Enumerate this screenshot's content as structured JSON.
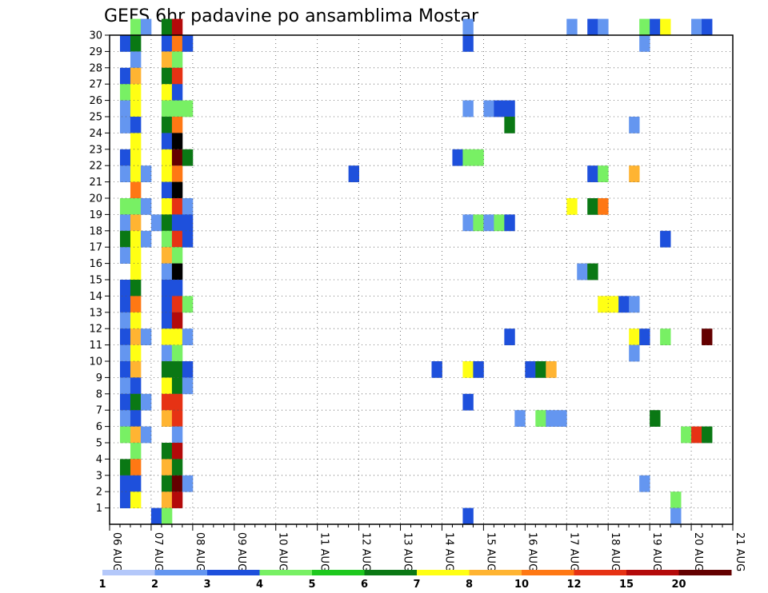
{
  "chart_data": {
    "type": "heatmap",
    "title": "GEFS 6hr padavine po ansamblima Mostar",
    "x_ticks": [
      "06 AUG",
      "07 AUG",
      "08 AUG",
      "09 AUG",
      "10 AUG",
      "11 AUG",
      "12 AUG",
      "13 AUG",
      "14 AUG",
      "15 AUG",
      "16 AUG",
      "17 AUG",
      "18 AUG",
      "19 AUG",
      "20 AUG",
      "21 AUG"
    ],
    "y_ticks": [
      "1",
      "2",
      "3",
      "4",
      "5",
      "6",
      "7",
      "8",
      "9",
      "10",
      "11",
      "12",
      "13",
      "14",
      "15",
      "16",
      "17",
      "18",
      "19",
      "20",
      "21",
      "22",
      "23",
      "24",
      "25",
      "26",
      "27",
      "28",
      "29",
      "30"
    ],
    "x_range": [
      0,
      60
    ],
    "y_range": [
      0,
      30
    ],
    "step_unit": "6-hour steps from 06 AUG 00 UTC",
    "colorbar": {
      "labels": [
        "1",
        "2",
        "3",
        "4",
        "5",
        "6",
        "7",
        "8",
        "10",
        "12",
        "15",
        "20"
      ],
      "colors": [
        "#b4c8fa",
        "#6496f0",
        "#1e50dc",
        "#78f064",
        "#1ec81e",
        "#0a7814",
        "#ffff14",
        "#ffb432",
        "#ff7814",
        "#e63214",
        "#b40a0a",
        "#640000"
      ]
    },
    "cells": [
      [
        1,
        29,
        2
      ],
      [
        1,
        27,
        2
      ],
      [
        1,
        26,
        3
      ],
      [
        1,
        25,
        1
      ],
      [
        1,
        24,
        1
      ],
      [
        1,
        22,
        2
      ],
      [
        1,
        21,
        1
      ],
      [
        1,
        19,
        3
      ],
      [
        1,
        18,
        1
      ],
      [
        1,
        17,
        5
      ],
      [
        1,
        16,
        1
      ],
      [
        1,
        14,
        2
      ],
      [
        1,
        13,
        2
      ],
      [
        1,
        12,
        1
      ],
      [
        1,
        11,
        2
      ],
      [
        1,
        10,
        1
      ],
      [
        1,
        9,
        2
      ],
      [
        1,
        8,
        1
      ],
      [
        1,
        7,
        2
      ],
      [
        1,
        6,
        1
      ],
      [
        1,
        5,
        3
      ],
      [
        1,
        3,
        5
      ],
      [
        1,
        2,
        2
      ],
      [
        1,
        1,
        2
      ],
      [
        2,
        30,
        3
      ],
      [
        2,
        29,
        5
      ],
      [
        2,
        28,
        1
      ],
      [
        2,
        27,
        7
      ],
      [
        2,
        26,
        6
      ],
      [
        2,
        25,
        6
      ],
      [
        2,
        24,
        2
      ],
      [
        2,
        23,
        6
      ],
      [
        2,
        22,
        6
      ],
      [
        2,
        21,
        6
      ],
      [
        2,
        20,
        8
      ],
      [
        2,
        19,
        3
      ],
      [
        2,
        18,
        7
      ],
      [
        2,
        17,
        6
      ],
      [
        2,
        16,
        6
      ],
      [
        2,
        15,
        6
      ],
      [
        2,
        14,
        5
      ],
      [
        2,
        13,
        8
      ],
      [
        2,
        12,
        6
      ],
      [
        2,
        11,
        7
      ],
      [
        2,
        10,
        6
      ],
      [
        2,
        9,
        7
      ],
      [
        2,
        8,
        2
      ],
      [
        2,
        7,
        5
      ],
      [
        2,
        6,
        2
      ],
      [
        2,
        5,
        7
      ],
      [
        2,
        4,
        3
      ],
      [
        2,
        3,
        8
      ],
      [
        2,
        2,
        2
      ],
      [
        2,
        1,
        6
      ],
      [
        3,
        30,
        1
      ],
      [
        3,
        21,
        1
      ],
      [
        3,
        19,
        1
      ],
      [
        3,
        17,
        1
      ],
      [
        3,
        11,
        1
      ],
      [
        3,
        7,
        1
      ],
      [
        3,
        5,
        1
      ],
      [
        4,
        18,
        1
      ],
      [
        4,
        0,
        2
      ],
      [
        5,
        30,
        5
      ],
      [
        5,
        29,
        2
      ],
      [
        5,
        28,
        7
      ],
      [
        5,
        27,
        5
      ],
      [
        5,
        26,
        6
      ],
      [
        5,
        25,
        3
      ],
      [
        5,
        24,
        5
      ],
      [
        5,
        23,
        2
      ],
      [
        5,
        22,
        6
      ],
      [
        5,
        21,
        6
      ],
      [
        5,
        20,
        2
      ],
      [
        5,
        19,
        6
      ],
      [
        5,
        18,
        5
      ],
      [
        5,
        17,
        3
      ],
      [
        5,
        16,
        7
      ],
      [
        5,
        15,
        1
      ],
      [
        5,
        14,
        2
      ],
      [
        5,
        13,
        2
      ],
      [
        5,
        12,
        2
      ],
      [
        5,
        11,
        6
      ],
      [
        5,
        10,
        1
      ],
      [
        5,
        9,
        5
      ],
      [
        5,
        8,
        6
      ],
      [
        5,
        7,
        9
      ],
      [
        5,
        6,
        7
      ],
      [
        5,
        4,
        5
      ],
      [
        5,
        3,
        7
      ],
      [
        5,
        2,
        5
      ],
      [
        5,
        1,
        7
      ],
      [
        5,
        0,
        3
      ],
      [
        6,
        30,
        10
      ],
      [
        6,
        29,
        8
      ],
      [
        6,
        28,
        3
      ],
      [
        6,
        27,
        9
      ],
      [
        6,
        26,
        2
      ],
      [
        6,
        25,
        3
      ],
      [
        6,
        24,
        8
      ],
      [
        6,
        23,
        12
      ],
      [
        6,
        22,
        11
      ],
      [
        6,
        21,
        8
      ],
      [
        6,
        20,
        12
      ],
      [
        6,
        19,
        9
      ],
      [
        6,
        18,
        2
      ],
      [
        6,
        17,
        9
      ],
      [
        6,
        16,
        3
      ],
      [
        6,
        15,
        12
      ],
      [
        6,
        14,
        2
      ],
      [
        6,
        13,
        9
      ],
      [
        6,
        12,
        10
      ],
      [
        6,
        11,
        6
      ],
      [
        6,
        10,
        3
      ],
      [
        6,
        9,
        5
      ],
      [
        6,
        8,
        5
      ],
      [
        6,
        7,
        9
      ],
      [
        6,
        6,
        9
      ],
      [
        6,
        5,
        1
      ],
      [
        6,
        4,
        10
      ],
      [
        6,
        3,
        5
      ],
      [
        6,
        2,
        11
      ],
      [
        6,
        1,
        10
      ],
      [
        7,
        29,
        2
      ],
      [
        7,
        25,
        3
      ],
      [
        7,
        22,
        5
      ],
      [
        7,
        19,
        1
      ],
      [
        7,
        18,
        2
      ],
      [
        7,
        17,
        2
      ],
      [
        7,
        13,
        3
      ],
      [
        7,
        11,
        1
      ],
      [
        7,
        9,
        2
      ],
      [
        7,
        8,
        1
      ],
      [
        7,
        2,
        1
      ],
      [
        23,
        21,
        2
      ],
      [
        31,
        9,
        2
      ],
      [
        33,
        22,
        2
      ],
      [
        34,
        30,
        1
      ],
      [
        34,
        29,
        2
      ],
      [
        34,
        25,
        1
      ],
      [
        34,
        22,
        3
      ],
      [
        34,
        18,
        1
      ],
      [
        34,
        9,
        6
      ],
      [
        34,
        7,
        2
      ],
      [
        34,
        0,
        2
      ],
      [
        35,
        22,
        3
      ],
      [
        35,
        18,
        3
      ],
      [
        35,
        9,
        2
      ],
      [
        36,
        25,
        1
      ],
      [
        36,
        18,
        1
      ],
      [
        37,
        25,
        2
      ],
      [
        37,
        18,
        3
      ],
      [
        38,
        25,
        2
      ],
      [
        38,
        24,
        5
      ],
      [
        38,
        18,
        2
      ],
      [
        38,
        11,
        2
      ],
      [
        39,
        6,
        1
      ],
      [
        40,
        9,
        2
      ],
      [
        41,
        9,
        5
      ],
      [
        41,
        6,
        3
      ],
      [
        42,
        9,
        7
      ],
      [
        42,
        6,
        1
      ],
      [
        43,
        6,
        1
      ],
      [
        44,
        30,
        1
      ],
      [
        44,
        19,
        6
      ],
      [
        45,
        15,
        1
      ],
      [
        46,
        30,
        2
      ],
      [
        46,
        21,
        2
      ],
      [
        46,
        19,
        5
      ],
      [
        46,
        15,
        5
      ],
      [
        47,
        30,
        1
      ],
      [
        47,
        21,
        3
      ],
      [
        47,
        19,
        8
      ],
      [
        47,
        13,
        6
      ],
      [
        48,
        13,
        6
      ],
      [
        49,
        13,
        2
      ],
      [
        50,
        24,
        1
      ],
      [
        50,
        21,
        7
      ],
      [
        50,
        13,
        1
      ],
      [
        50,
        11,
        6
      ],
      [
        50,
        10,
        1
      ],
      [
        51,
        30,
        3
      ],
      [
        51,
        29,
        1
      ],
      [
        51,
        11,
        2
      ],
      [
        51,
        2,
        1
      ],
      [
        52,
        30,
        2
      ],
      [
        52,
        6,
        5
      ],
      [
        53,
        30,
        6
      ],
      [
        53,
        17,
        2
      ],
      [
        53,
        11,
        3
      ],
      [
        54,
        1,
        3
      ],
      [
        54,
        0,
        1
      ],
      [
        55,
        5,
        3
      ],
      [
        56,
        30,
        1
      ],
      [
        56,
        5,
        9
      ],
      [
        57,
        30,
        2
      ],
      [
        57,
        11,
        11
      ],
      [
        57,
        5,
        5
      ]
    ]
  }
}
